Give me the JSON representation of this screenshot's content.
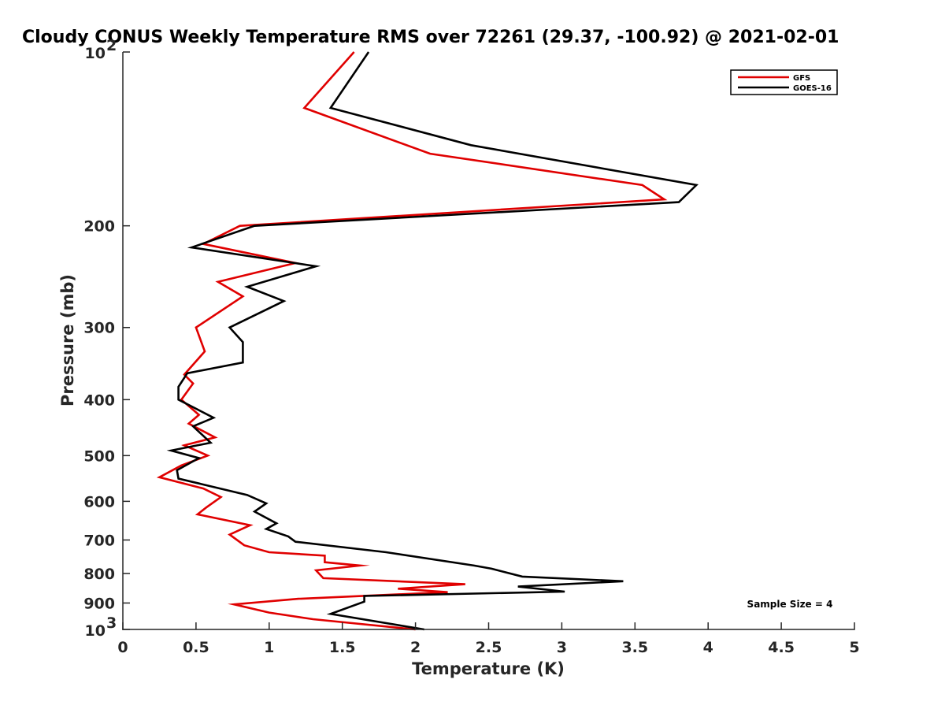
{
  "chart_data": {
    "type": "line",
    "title": "Cloudy CONUS Weekly Temperature RMS over 72261 (29.37, -100.92) @ 2021-02-01",
    "xlabel": "Temperature (K)",
    "ylabel": "Pressure (mb)",
    "xlim": [
      0,
      5
    ],
    "ylim": [
      100,
      1000
    ],
    "yscale": "log",
    "y_reversed": true,
    "grid": false,
    "x_ticks": [
      0,
      0.5,
      1,
      1.5,
      2,
      2.5,
      3,
      3.5,
      4,
      4.5,
      5
    ],
    "x_tick_labels": [
      "0",
      "0.5",
      "1",
      "1.5",
      "2",
      "2.5",
      "3",
      "3.5",
      "4",
      "4.5",
      "5"
    ],
    "y_ticks": [
      100,
      200,
      300,
      400,
      500,
      600,
      700,
      800,
      900,
      1000
    ],
    "y_tick_labels": [
      {
        "base": "10",
        "exp": "2"
      },
      {
        "base": "200",
        "exp": ""
      },
      {
        "base": "300",
        "exp": ""
      },
      {
        "base": "400",
        "exp": ""
      },
      {
        "base": "500",
        "exp": ""
      },
      {
        "base": "600",
        "exp": ""
      },
      {
        "base": "700",
        "exp": ""
      },
      {
        "base": "800",
        "exp": ""
      },
      {
        "base": "900",
        "exp": ""
      },
      {
        "base": "10",
        "exp": "3"
      }
    ],
    "legend_position": "top-right",
    "annotation": "Sample Size = 4",
    "series": [
      {
        "name": "GFS",
        "color": "#e00000",
        "points": [
          [
            1.58,
            100
          ],
          [
            1.24,
            125
          ],
          [
            2.1,
            150
          ],
          [
            3.55,
            170
          ],
          [
            3.7,
            180
          ],
          [
            0.8,
            200
          ],
          [
            0.55,
            215
          ],
          [
            1.18,
            232
          ],
          [
            0.65,
            250
          ],
          [
            0.82,
            265
          ],
          [
            0.5,
            300
          ],
          [
            0.56,
            330
          ],
          [
            0.42,
            362
          ],
          [
            0.48,
            375
          ],
          [
            0.4,
            400
          ],
          [
            0.52,
            425
          ],
          [
            0.45,
            440
          ],
          [
            0.63,
            465
          ],
          [
            0.42,
            480
          ],
          [
            0.58,
            500
          ],
          [
            0.4,
            520
          ],
          [
            0.25,
            545
          ],
          [
            0.55,
            570
          ],
          [
            0.67,
            590
          ],
          [
            0.57,
            615
          ],
          [
            0.51,
            632
          ],
          [
            0.87,
            660
          ],
          [
            0.73,
            685
          ],
          [
            0.83,
            715
          ],
          [
            1.0,
            735
          ],
          [
            1.38,
            745
          ],
          [
            1.38,
            765
          ],
          [
            1.62,
            775
          ],
          [
            1.32,
            790
          ],
          [
            1.37,
            815
          ],
          [
            2.34,
            835
          ],
          [
            1.88,
            850
          ],
          [
            2.22,
            862
          ],
          [
            1.2,
            885
          ],
          [
            0.76,
            905
          ],
          [
            1.0,
            935
          ],
          [
            1.3,
            960
          ],
          [
            2.0,
            1000
          ]
        ]
      },
      {
        "name": "GOES-16",
        "color": "#000000",
        "points": [
          [
            1.68,
            100
          ],
          [
            1.42,
            125
          ],
          [
            2.38,
            145
          ],
          [
            3.92,
            170
          ],
          [
            3.8,
            182
          ],
          [
            0.9,
            200
          ],
          [
            0.47,
            218
          ],
          [
            1.32,
            235
          ],
          [
            0.85,
            255
          ],
          [
            1.1,
            270
          ],
          [
            0.73,
            300
          ],
          [
            0.82,
            318
          ],
          [
            0.82,
            345
          ],
          [
            0.44,
            360
          ],
          [
            0.38,
            380
          ],
          [
            0.38,
            400
          ],
          [
            0.62,
            430
          ],
          [
            0.48,
            445
          ],
          [
            0.6,
            475
          ],
          [
            0.33,
            490
          ],
          [
            0.52,
            505
          ],
          [
            0.37,
            530
          ],
          [
            0.38,
            548
          ],
          [
            0.85,
            585
          ],
          [
            0.98,
            605
          ],
          [
            0.9,
            625
          ],
          [
            1.05,
            655
          ],
          [
            0.98,
            670
          ],
          [
            1.13,
            690
          ],
          [
            1.18,
            705
          ],
          [
            1.8,
            735
          ],
          [
            2.4,
            775
          ],
          [
            2.52,
            785
          ],
          [
            2.73,
            810
          ],
          [
            3.42,
            825
          ],
          [
            2.7,
            843
          ],
          [
            3.02,
            860
          ],
          [
            1.65,
            875
          ],
          [
            1.65,
            895
          ],
          [
            1.42,
            940
          ],
          [
            2.06,
            1000
          ]
        ]
      }
    ]
  }
}
